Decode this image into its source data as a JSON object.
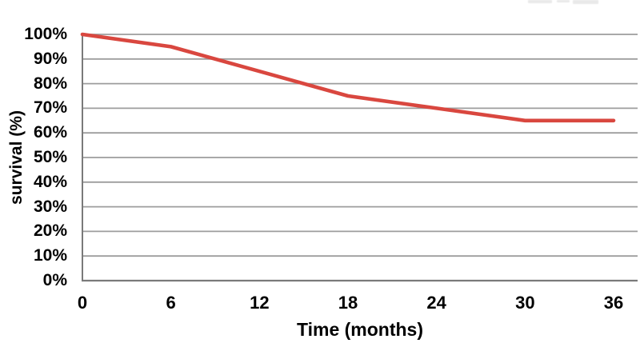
{
  "chart_data": {
    "type": "line",
    "title": "",
    "xlabel": "Time (months)",
    "ylabel": "survival (%)",
    "categories": [
      0,
      6,
      12,
      18,
      24,
      30,
      36
    ],
    "x_tick_labels": [
      "0",
      "6",
      "12",
      "18",
      "24",
      "30",
      "36"
    ],
    "y_tick_labels": [
      "0%",
      "10%",
      "20%",
      "30%",
      "40%",
      "50%",
      "60%",
      "70%",
      "80%",
      "90%",
      "100%"
    ],
    "series": [
      {
        "name": "survival",
        "values": [
          100,
          95,
          85,
          75,
          70,
          65,
          65
        ]
      }
    ],
    "ylim": [
      0,
      100
    ],
    "grid": "horizontal",
    "legend": "none",
    "colors": {
      "line": "#d9473f",
      "gridline": "#9d9d9d",
      "axis": "#7a7a7a",
      "text": "#000000",
      "background": "#ffffff"
    }
  }
}
